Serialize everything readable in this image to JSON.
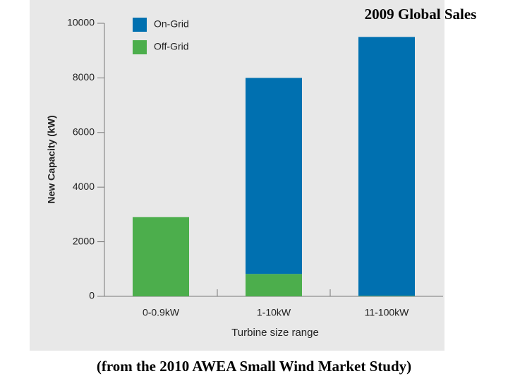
{
  "chart_data": {
    "type": "stacked_bar",
    "title": "2009 Global Sales",
    "caption": "(from the 2010 AWEA Small Wind Market Study)",
    "xlabel": "Turbine size range",
    "ylabel": "New Capacity (kW)",
    "categories": [
      "0-0.9kW",
      "1-10kW",
      "11-100kW"
    ],
    "series": [
      {
        "name": "On-Grid",
        "color": "#0070b0",
        "values": [
          0,
          7180,
          9480
        ]
      },
      {
        "name": "Off-Grid",
        "color": "#4cae4c",
        "values": [
          2900,
          820,
          20
        ]
      }
    ],
    "ylim": [
      0,
      10000
    ],
    "yticks": [
      0,
      2000,
      4000,
      6000,
      8000,
      10000
    ]
  }
}
